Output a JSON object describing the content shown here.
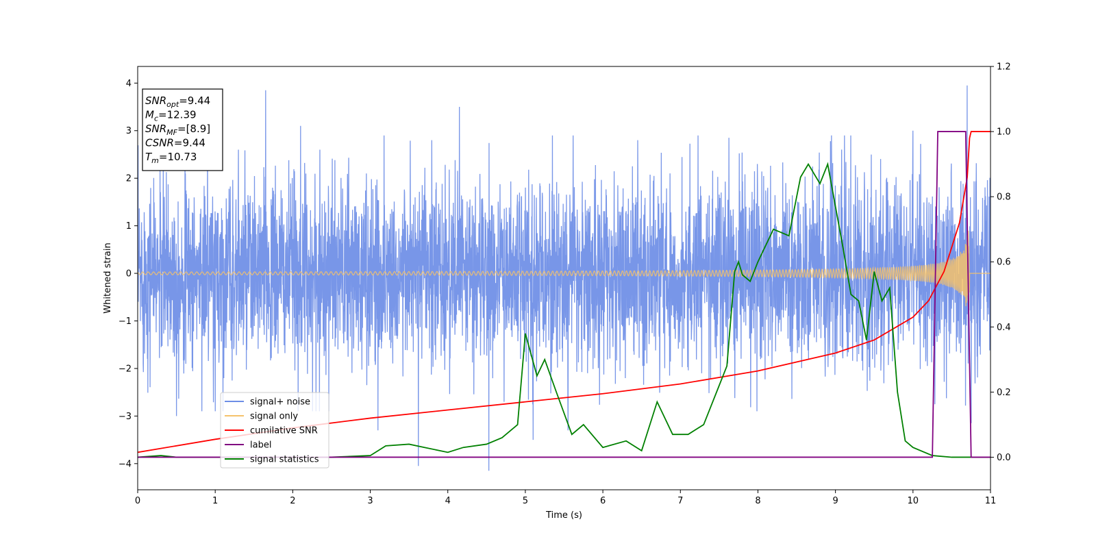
{
  "chart_data": {
    "type": "line",
    "title": "",
    "xlabel": "Time (s)",
    "ylabel": "Whitened strain",
    "xlim": [
      0,
      11
    ],
    "ylim": [
      -4.55,
      4.35
    ],
    "y2lim": [
      -0.1,
      1.2
    ],
    "x_ticks": [
      0,
      1,
      2,
      3,
      4,
      5,
      6,
      7,
      8,
      9,
      10,
      11
    ],
    "y_ticks": [
      -4,
      -3,
      -2,
      -1,
      0,
      1,
      2,
      3,
      4
    ],
    "y2_ticks": [
      "0.0",
      "0.2",
      "0.4",
      "0.6",
      "0.8",
      "1.0",
      "1.2"
    ],
    "grid": false,
    "legend_placement": "lower-left",
    "info_box": {
      "lines": [
        {
          "main": "SNR",
          "sub": "opt",
          "rest": "=9.44"
        },
        {
          "main": "M",
          "sub": "c",
          "rest": "=12.39"
        },
        {
          "main": "SNR",
          "sub": "MF",
          "rest": "=[8.9]"
        },
        {
          "main": "CSNR",
          "sub": "",
          "rest": "=9.44"
        },
        {
          "main": "T",
          "sub": "m",
          "rest": "=10.73"
        }
      ]
    },
    "series": [
      {
        "name": "signal+ noise",
        "color": "#6d8de6",
        "axis": "left",
        "noise_envelope": {
          "typical_range": [
            -2.0,
            2.1
          ],
          "peaks": [
            [
              0.9,
              2.7
            ],
            [
              1.3,
              2.6
            ],
            [
              1.65,
              3.85
            ],
            [
              2.1,
              3.1
            ],
            [
              2.35,
              2.6
            ],
            [
              4.15,
              3.5
            ],
            [
              5.35,
              2.9
            ],
            [
              6.45,
              2.8
            ],
            [
              8.95,
              2.9
            ],
            [
              10.0,
              3.0
            ],
            [
              10.7,
              3.95
            ]
          ],
          "troughs": [
            [
              0.5,
              -3.0
            ],
            [
              1.0,
              -2.9
            ],
            [
              2.3,
              -2.9
            ],
            [
              3.1,
              -3.3
            ],
            [
              3.62,
              -4.05
            ],
            [
              4.53,
              -4.15
            ],
            [
              5.1,
              -3.5
            ],
            [
              5.55,
              -3.3
            ],
            [
              10.75,
              -3.15
            ]
          ]
        }
      },
      {
        "name": "signal only",
        "color": "#f5c26b",
        "axis": "left",
        "chirp": {
          "end_time": 10.73,
          "end_amplitude": 1.0,
          "start_amplitude": 0.03
        }
      },
      {
        "name": "cumilative SNR",
        "color": "#ff0000",
        "axis": "right",
        "x": [
          0,
          1,
          2,
          3,
          4,
          5,
          6,
          7,
          8,
          9,
          9.5,
          10,
          10.2,
          10.4,
          10.6,
          10.7,
          10.73,
          10.75,
          11
        ],
        "values": [
          0.015,
          0.055,
          0.09,
          0.12,
          0.145,
          0.17,
          0.195,
          0.225,
          0.265,
          0.32,
          0.36,
          0.43,
          0.48,
          0.57,
          0.72,
          0.86,
          0.98,
          1.0,
          1.0
        ]
      },
      {
        "name": "label",
        "color": "#800080",
        "axis": "right",
        "x": [
          0,
          10.25,
          10.32,
          10.68,
          10.75,
          11
        ],
        "values": [
          0,
          0,
          1,
          1,
          0,
          0
        ]
      },
      {
        "name": "signal statistics",
        "color": "#008000",
        "axis": "right",
        "x": [
          0,
          0.3,
          0.5,
          1,
          2,
          2.5,
          3,
          3.2,
          3.5,
          3.7,
          4,
          4.2,
          4.5,
          4.7,
          4.9,
          5.0,
          5.15,
          5.25,
          5.4,
          5.6,
          5.75,
          6.0,
          6.3,
          6.5,
          6.7,
          6.9,
          7.1,
          7.3,
          7.5,
          7.6,
          7.7,
          7.75,
          7.8,
          7.9,
          8.0,
          8.2,
          8.4,
          8.55,
          8.65,
          8.8,
          8.9,
          9.1,
          9.2,
          9.3,
          9.4,
          9.5,
          9.6,
          9.7,
          9.8,
          9.9,
          10,
          10.25,
          10.5,
          10.7,
          11
        ],
        "values": [
          0,
          0.005,
          0,
          0,
          0,
          0,
          0.005,
          0.035,
          0.04,
          0.03,
          0.015,
          0.03,
          0.04,
          0.06,
          0.1,
          0.38,
          0.25,
          0.3,
          0.2,
          0.07,
          0.1,
          0.03,
          0.05,
          0.02,
          0.17,
          0.07,
          0.07,
          0.1,
          0.22,
          0.28,
          0.57,
          0.6,
          0.56,
          0.54,
          0.6,
          0.7,
          0.68,
          0.86,
          0.9,
          0.84,
          0.9,
          0.64,
          0.5,
          0.48,
          0.36,
          0.57,
          0.48,
          0.52,
          0.2,
          0.05,
          0.03,
          0.005,
          0,
          0,
          0
        ]
      }
    ]
  }
}
